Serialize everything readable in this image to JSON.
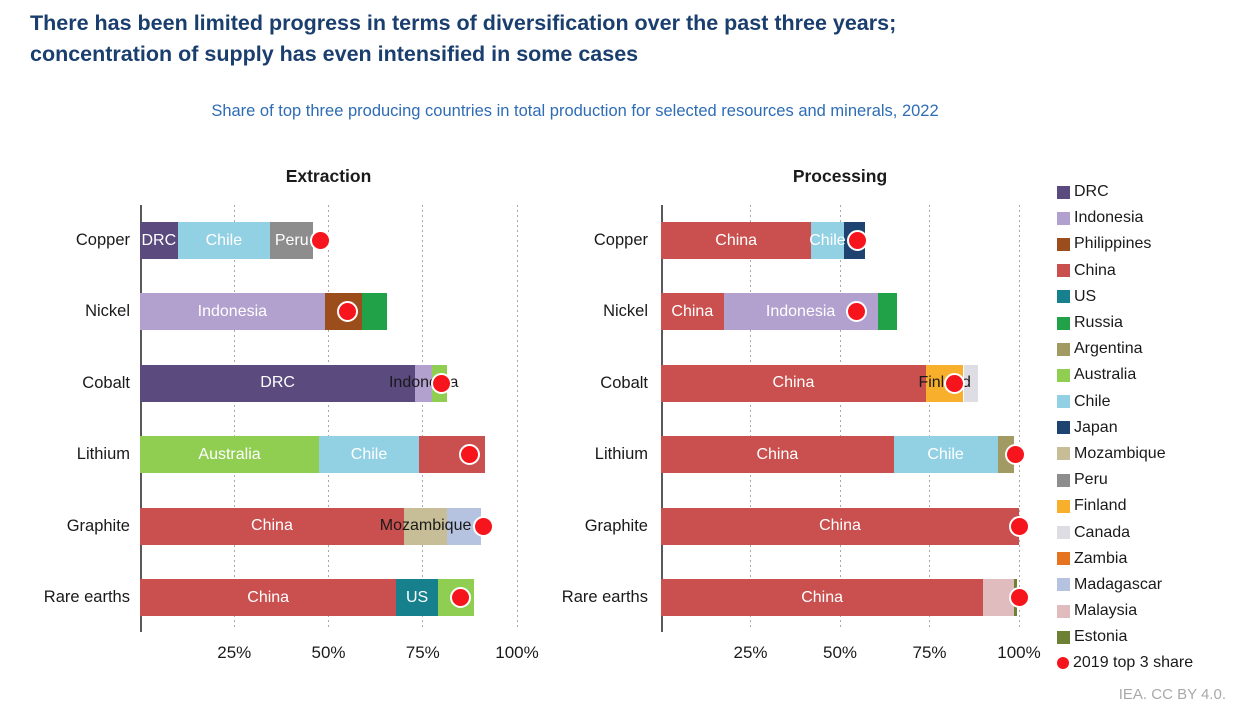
{
  "header": {
    "title_line1": "There has been limited progress in terms of diversification over the past three years;",
    "title_line2": "concentration of supply has even intensified in some cases",
    "subtitle": "Share of top three producing countries in total production for selected resources and minerals, 2022"
  },
  "footer": {
    "attribution": "IEA. CC BY 4.0."
  },
  "colors": {
    "title_text": "#1a3e6e",
    "subtitle_text": "#2e6cb5",
    "axis_line": "#595959",
    "gridline": "#a8a8a8",
    "dot_2019": "#f7151d",
    "countries": {
      "DRC": "#5a4a7d",
      "Indonesia": "#b2a1cf",
      "Philippines": "#9b4e1c",
      "China": "#c9504e",
      "US": "#17808d",
      "Russia": "#21a249",
      "Argentina": "#a19a62",
      "Australia": "#90ce52",
      "Chile": "#92d1e4",
      "Japan": "#1e4370",
      "Mozambique": "#c7bd96",
      "Peru": "#8d8d8d",
      "Finland": "#f8b02c",
      "Canada": "#dfdde4",
      "Zambia": "#e5731f",
      "Madagascar": "#b5c3e1",
      "Malaysia": "#e0bcbf",
      "Estonia": "#6d8135"
    }
  },
  "chart_data": {
    "type": "bar",
    "orientation": "horizontal-stacked",
    "unit": "percent share",
    "xlim": [
      0,
      100
    ],
    "x_ticks": [
      "25%",
      "50%",
      "75%",
      "100%"
    ],
    "x_tick_values": [
      25,
      50,
      75,
      100
    ],
    "grid": "dotted-vertical",
    "legend_position": "right",
    "categories": [
      "Copper",
      "Nickel",
      "Cobalt",
      "Lithium",
      "Graphite",
      "Rare earths"
    ],
    "panels": [
      {
        "title": "Extraction",
        "bars": [
          {
            "mineral": "Copper",
            "dot_2019": 48,
            "segments": [
              {
                "country": "DRC",
                "value": 10,
                "label": "DRC",
                "label_style": "light"
              },
              {
                "country": "Chile",
                "value": 24.5,
                "label": "Chile",
                "label_style": "light"
              },
              {
                "country": "Peru",
                "value": 11.5,
                "label": "Peru",
                "label_style": "light"
              }
            ]
          },
          {
            "mineral": "Nickel",
            "dot_2019": 55,
            "segments": [
              {
                "country": "Indonesia",
                "value": 49,
                "label": "Indonesia",
                "label_style": "light"
              },
              {
                "country": "Philippines",
                "value": 10,
                "label": "",
                "label_style": "light"
              },
              {
                "country": "Russia",
                "value": 6.5,
                "label": "",
                "label_style": "light"
              }
            ]
          },
          {
            "mineral": "Cobalt",
            "dot_2019": 80,
            "segments": [
              {
                "country": "DRC",
                "value": 73,
                "label": "DRC",
                "label_style": "light"
              },
              {
                "country": "Indonesia",
                "value": 4.5,
                "label": "Indonesia",
                "label_style": "dark"
              },
              {
                "country": "Australia",
                "value": 4,
                "label": "",
                "label_style": "light"
              }
            ]
          },
          {
            "mineral": "Lithium",
            "dot_2019": 87.5,
            "segments": [
              {
                "country": "Australia",
                "value": 47.5,
                "label": "Australia",
                "label_style": "light"
              },
              {
                "country": "Chile",
                "value": 26.5,
                "label": "Chile",
                "label_style": "light"
              },
              {
                "country": "China",
                "value": 17.5,
                "label": "",
                "label_style": "light"
              }
            ]
          },
          {
            "mineral": "Graphite",
            "dot_2019": 91,
            "segments": [
              {
                "country": "China",
                "value": 70,
                "label": "China",
                "label_style": "light"
              },
              {
                "country": "Mozambique",
                "value": 11.5,
                "label": "Mozambique",
                "label_style": "dark"
              },
              {
                "country": "Madagascar",
                "value": 9,
                "label": "",
                "label_style": "light"
              }
            ]
          },
          {
            "mineral": "Rare earths",
            "dot_2019": 85,
            "segments": [
              {
                "country": "China",
                "value": 68,
                "label": "China",
                "label_style": "light"
              },
              {
                "country": "US",
                "value": 11,
                "label": "US",
                "label_style": "light"
              },
              {
                "country": "Australia",
                "value": 9.5,
                "label": "",
                "label_style": "light"
              }
            ]
          }
        ]
      },
      {
        "title": "Processing",
        "bars": [
          {
            "mineral": "Copper",
            "dot_2019": 55,
            "segments": [
              {
                "country": "China",
                "value": 42,
                "label": "China",
                "label_style": "light"
              },
              {
                "country": "Chile",
                "value": 9,
                "label": "Chile",
                "label_style": "light"
              },
              {
                "country": "Japan",
                "value": 6,
                "label": "",
                "label_style": "light"
              }
            ]
          },
          {
            "mineral": "Nickel",
            "dot_2019": 54.5,
            "segments": [
              {
                "country": "China",
                "value": 17.5,
                "label": "China",
                "label_style": "light"
              },
              {
                "country": "Indonesia",
                "value": 43,
                "label": "Indonesia",
                "label_style": "light"
              },
              {
                "country": "Russia",
                "value": 5.5,
                "label": "",
                "label_style": "light"
              }
            ]
          },
          {
            "mineral": "Cobalt",
            "dot_2019": 82,
            "segments": [
              {
                "country": "China",
                "value": 74,
                "label": "China",
                "label_style": "light"
              },
              {
                "country": "Finland",
                "value": 10.5,
                "label": "Finland",
                "label_style": "dark"
              },
              {
                "country": "Canada",
                "value": 4,
                "label": "",
                "label_style": "light"
              }
            ]
          },
          {
            "mineral": "Lithium",
            "dot_2019": 99,
            "segments": [
              {
                "country": "China",
                "value": 65,
                "label": "China",
                "label_style": "light"
              },
              {
                "country": "Chile",
                "value": 29,
                "label": "Chile",
                "label_style": "light"
              },
              {
                "country": "Argentina",
                "value": 4.5,
                "label": "",
                "label_style": "light"
              }
            ]
          },
          {
            "mineral": "Graphite",
            "dot_2019": 100,
            "segments": [
              {
                "country": "China",
                "value": 100,
                "label": "China",
                "label_style": "light"
              }
            ]
          },
          {
            "mineral": "Rare earths",
            "dot_2019": 100,
            "segments": [
              {
                "country": "China",
                "value": 90,
                "label": "China",
                "label_style": "light"
              },
              {
                "country": "Malaysia",
                "value": 8.5,
                "label": "",
                "label_style": "light"
              },
              {
                "country": "Estonia",
                "value": 1,
                "label": "",
                "label_style": "light"
              }
            ]
          }
        ]
      }
    ],
    "legend": [
      "DRC",
      "Indonesia",
      "Philippines",
      "China",
      "US",
      "Russia",
      "Argentina",
      "Australia",
      "Chile",
      "Japan",
      "Mozambique",
      "Peru",
      "Finland",
      "Canada",
      "Zambia",
      "Madagascar",
      "Malaysia",
      "Estonia"
    ],
    "legend_dot_label": "2019 top 3 share"
  }
}
